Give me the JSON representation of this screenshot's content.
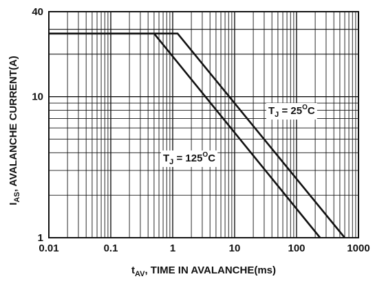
{
  "chart_data": {
    "type": "line",
    "title": "",
    "xlabel": {
      "main": "t",
      "sub": "AV",
      "rest": ", TIME IN AVALANCHE(ms)"
    },
    "ylabel": {
      "main": "I",
      "sub": "AS",
      "rest": ", AVALANCHE CURRENT(A)"
    },
    "x_scale": "log",
    "y_scale": "log",
    "xlim": [
      0.01,
      1000
    ],
    "ylim": [
      1,
      40
    ],
    "x_ticks": [
      {
        "value": 0.01,
        "label": "0.01"
      },
      {
        "value": 0.1,
        "label": "0.1"
      },
      {
        "value": 1,
        "label": "1"
      },
      {
        "value": 10,
        "label": "10"
      },
      {
        "value": 100,
        "label": "100"
      },
      {
        "value": 1000,
        "label": "1000"
      }
    ],
    "y_ticks": [
      {
        "value": 1,
        "label": "1"
      },
      {
        "value": 10,
        "label": "10"
      },
      {
        "value": 40,
        "label": "40"
      }
    ],
    "grid": true,
    "series": [
      {
        "name": "T_J = 25°C",
        "label": {
          "main": "T",
          "sub": "J",
          "rest": " = 25",
          "sup": "O",
          "unit": "C"
        },
        "points": [
          [
            0.01,
            28
          ],
          [
            1.2,
            28
          ],
          [
            600,
            1
          ]
        ]
      },
      {
        "name": "T_J = 125°C",
        "label": {
          "main": "T",
          "sub": "J",
          "rest": " = 125",
          "sup": "O",
          "unit": "C"
        },
        "points": [
          [
            0.01,
            28
          ],
          [
            0.5,
            28
          ],
          [
            240,
            1
          ]
        ]
      }
    ]
  }
}
